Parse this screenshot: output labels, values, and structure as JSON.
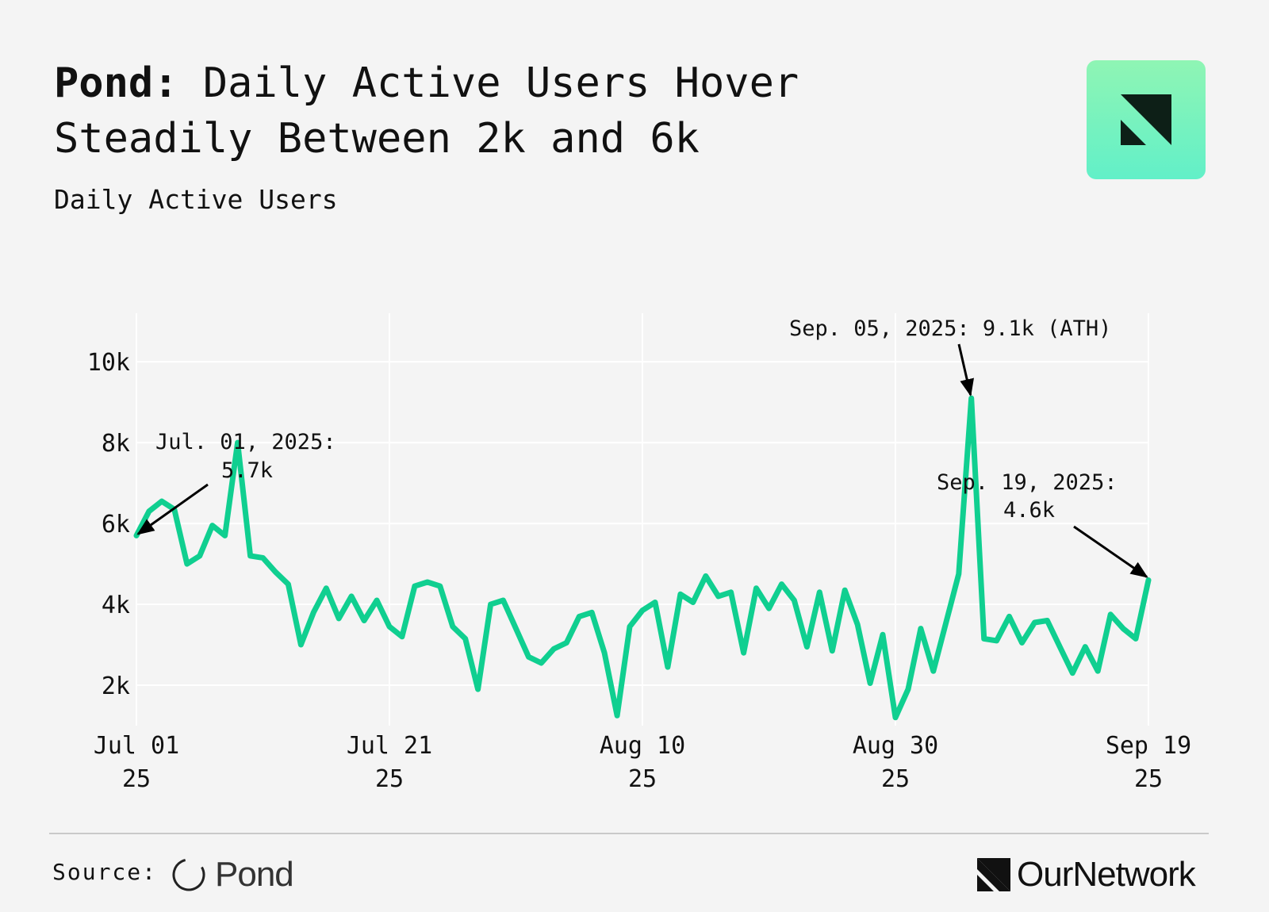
{
  "header": {
    "title_bold": "Pond:",
    "title_rest": " Daily Active Users Hover Steadily Between 2k and 6k",
    "subtitle": "Daily Active Users"
  },
  "footer": {
    "source_label": "Source:",
    "source_name": "Pond",
    "brand_name": "OurNetwork"
  },
  "colors": {
    "line": "#10cf90",
    "grid": "#ffffff",
    "accent_gradient_top": "#8ff5b4",
    "accent_gradient_bottom": "#62f0c8"
  },
  "chart_data": {
    "type": "line",
    "title": "Pond: Daily Active Users Hover Steadily Between 2k and 6k",
    "ylabel": "Daily Active Users",
    "xlabel": "",
    "x_start": "2025-07-01",
    "x_end": "2025-09-19",
    "ylim": [
      1000,
      11200
    ],
    "yticks": [
      {
        "value": 2000,
        "label": "2k"
      },
      {
        "value": 4000,
        "label": "4k"
      },
      {
        "value": 6000,
        "label": "6k"
      },
      {
        "value": 8000,
        "label": "8k"
      },
      {
        "value": 10000,
        "label": "10k"
      }
    ],
    "xticks": [
      {
        "day": 0,
        "label1": "Jul 01",
        "label2": "25"
      },
      {
        "day": 20,
        "label1": "Jul 21",
        "label2": "25"
      },
      {
        "day": 40,
        "label1": "Aug 10",
        "label2": "25"
      },
      {
        "day": 60,
        "label1": "Aug 30",
        "label2": "25"
      },
      {
        "day": 80,
        "label1": "Sep 19",
        "label2": "25"
      }
    ],
    "grid": true,
    "series": [
      {
        "name": "Daily Active Users",
        "values": [
          5700,
          6300,
          6550,
          6350,
          5000,
          5200,
          5950,
          5700,
          8000,
          5200,
          5150,
          4800,
          4500,
          3000,
          3800,
          4400,
          3650,
          4200,
          3600,
          4100,
          3450,
          3200,
          4450,
          4550,
          4450,
          3450,
          3150,
          1900,
          4000,
          4100,
          3400,
          2700,
          2550,
          2900,
          3050,
          3700,
          3800,
          2800,
          1250,
          3450,
          3850,
          4050,
          2450,
          4250,
          4050,
          4700,
          4200,
          4300,
          2800,
          4400,
          3900,
          4500,
          4100,
          2950,
          4300,
          2850,
          4350,
          3500,
          2050,
          3250,
          1200,
          1900,
          3400,
          2350,
          3550,
          4750,
          9100,
          3150,
          3100,
          3700,
          3050,
          3550,
          3600,
          2950,
          2300,
          2950,
          2350,
          3750,
          3400,
          3150,
          4600
        ]
      }
    ],
    "annotations": [
      {
        "day": 0,
        "value": 5700,
        "text1": "Jul. 01, 2025:",
        "text2": "5.7k"
      },
      {
        "day": 66,
        "value": 9100,
        "text1": "Sep. 05, 2025: 9.1k (ATH)",
        "text2": ""
      },
      {
        "day": 80,
        "value": 4600,
        "text1": "Sep. 19, 2025:",
        "text2": "4.6k"
      }
    ]
  }
}
